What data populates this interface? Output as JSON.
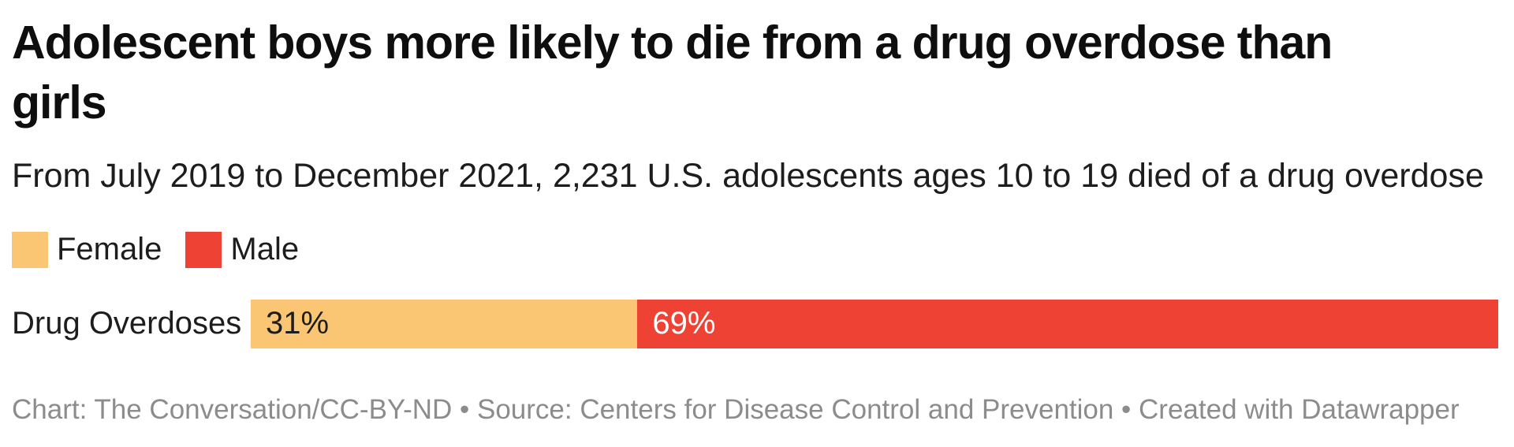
{
  "chart_data": {
    "type": "bar",
    "subtype": "stacked-horizontal-percentage",
    "title": "Adolescent boys more likely to die from a drug overdose than girls",
    "subtitle": "From July 2019 to December 2021, 2,231 U.S. adolescents ages 10 to 19 died of a drug overdose",
    "categories": [
      "Drug Overdoses"
    ],
    "series": [
      {
        "name": "Female",
        "value": 31,
        "display_label": "31%",
        "color": "#FBC673",
        "label_color": "#1d1d1d"
      },
      {
        "name": "Male",
        "value": 69,
        "display_label": "69%",
        "color": "#EE4234",
        "label_color": "#ffffff"
      }
    ],
    "unit": "%",
    "xlim": [
      0,
      100
    ],
    "grid": false,
    "axis_ticks": "none",
    "legend_position": "top-left"
  },
  "footer": {
    "credit": "Chart: The Conversation/CC-BY-ND • Source: Centers for Disease Control and Prevention • Created with Datawrapper"
  },
  "colors": {
    "background": "#ffffff",
    "title_text": "#0e0e0e",
    "body_text": "#1d1d1d",
    "footer_text": "#8c8c8c",
    "female": "#FBC673",
    "male": "#EE4234"
  }
}
